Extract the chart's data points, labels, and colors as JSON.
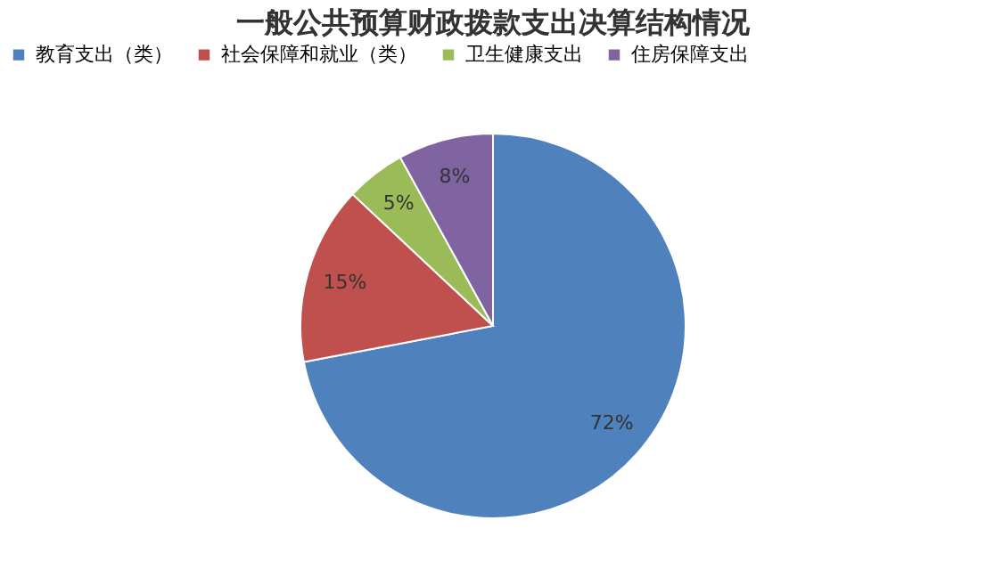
{
  "chart_data": {
    "type": "pie",
    "title": "一般公共预算财政拨款支出决算结构情况",
    "categories": [
      "教育支出（类）",
      "社会保障和就业（类）",
      "卫生健康支出",
      "住房保障支出"
    ],
    "values": [
      72,
      15,
      5,
      8
    ],
    "colors": [
      "#4f81bd",
      "#c0504d",
      "#9bbb59",
      "#8064a2"
    ],
    "value_labels": [
      "72%",
      "15%",
      "5%",
      "8%"
    ],
    "legend": "top"
  }
}
